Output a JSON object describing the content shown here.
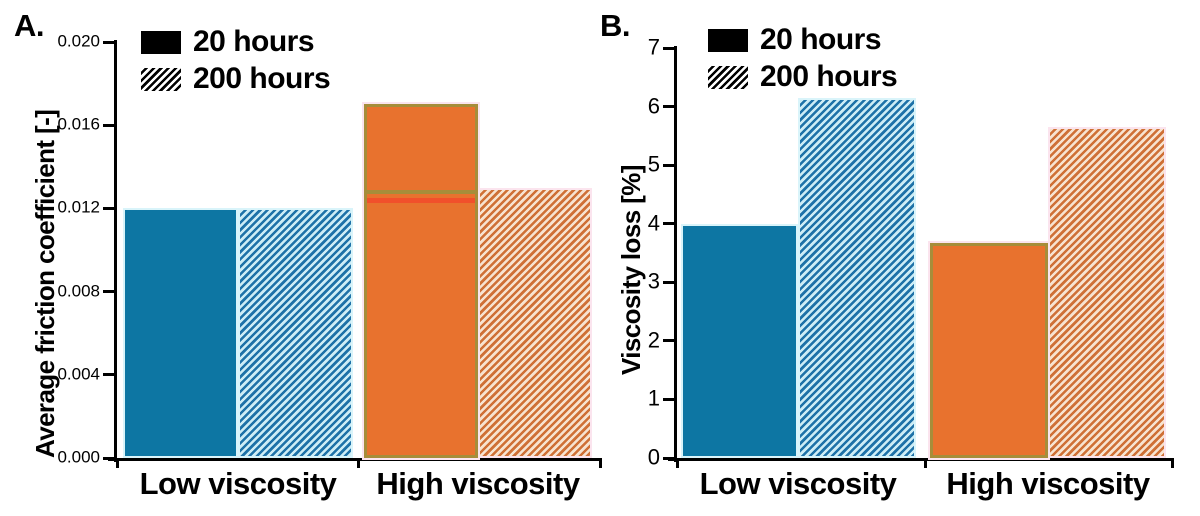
{
  "panels": [
    {
      "label": "A.",
      "ylabel": "Average friction coefficient [-]"
    },
    {
      "label": "B.",
      "ylabel": "Viscosity loss [%]"
    }
  ],
  "legend": {
    "items": [
      {
        "label": "20 hours",
        "style": "solid"
      },
      {
        "label": "200 hours",
        "style": "hatched"
      }
    ]
  },
  "chart_data": [
    {
      "type": "bar",
      "panel": "A",
      "ylabel": "Average friction coefficient [-]",
      "categories": [
        "Low viscosity",
        "High viscosity"
      ],
      "series": [
        {
          "name": "20 hours",
          "values": [
            0.012,
            0.017
          ]
        },
        {
          "name": "200 hours",
          "values": [
            0.012,
            0.013
          ]
        }
      ],
      "ylim": [
        0,
        0.02
      ],
      "yticks": [
        "0.000",
        "0.004",
        "0.008",
        "0.012",
        "0.016",
        "0.020"
      ],
      "grid": false,
      "legend_position": "top-left",
      "annotations": [
        {
          "type": "hline-on-bar",
          "category_index": 1,
          "series_index": 0,
          "value": 0.0128,
          "color": "#a68d3a",
          "thickness": 4
        },
        {
          "type": "hline-on-bar",
          "category_index": 1,
          "series_index": 0,
          "value": 0.0124,
          "color": "#f1502b",
          "thickness": 5
        }
      ]
    },
    {
      "type": "bar",
      "panel": "B",
      "ylabel": "Viscosity loss [%]",
      "categories": [
        "Low viscosity",
        "High viscosity"
      ],
      "series": [
        {
          "name": "20 hours",
          "values": [
            4.0,
            3.67
          ]
        },
        {
          "name": "200 hours",
          "values": [
            6.15,
            5.65
          ]
        }
      ],
      "ylim": [
        0,
        7
      ],
      "yticks": [
        "0",
        "1",
        "2",
        "3",
        "4",
        "5",
        "6",
        "7"
      ],
      "grid": false,
      "legend_position": "top-left"
    }
  ],
  "colors": {
    "bar_blue": "#0d76a3",
    "bar_blue_hatch_fg": "#1e72a8",
    "bar_blue_hatch_bg": "#cdedf6",
    "bar_blue_edge": "#d9f4fa",
    "bar_orange": "#e8722e",
    "bar_orange_hatch_fg": "#cf7036",
    "bar_orange_hatch_bg": "#f7e3d0",
    "bar_orange_edge": "#fbe4ee",
    "bar_orange_border": "#a68d3a",
    "annotation_red": "#f1502b",
    "legend_hatch_fg": "#000000",
    "legend_hatch_bg": "#ffffff",
    "axis": "#000000"
  }
}
